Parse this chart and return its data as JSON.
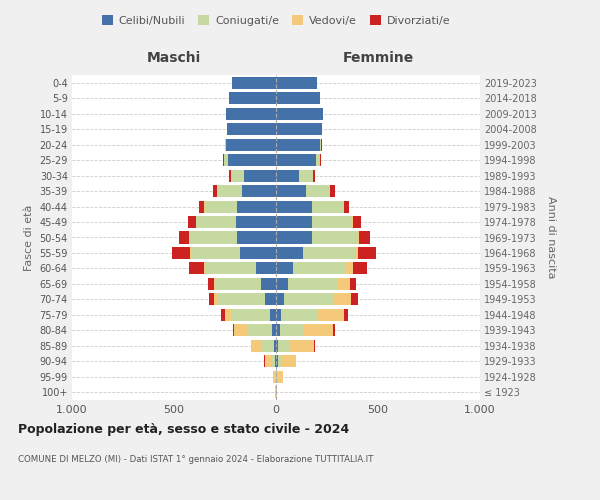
{
  "age_groups": [
    "100+",
    "95-99",
    "90-94",
    "85-89",
    "80-84",
    "75-79",
    "70-74",
    "65-69",
    "60-64",
    "55-59",
    "50-54",
    "45-49",
    "40-44",
    "35-39",
    "30-34",
    "25-29",
    "20-24",
    "15-19",
    "10-14",
    "5-9",
    "0-4"
  ],
  "birth_years": [
    "≤ 1923",
    "1924-1928",
    "1929-1933",
    "1934-1938",
    "1939-1943",
    "1944-1948",
    "1949-1953",
    "1954-1958",
    "1959-1963",
    "1964-1968",
    "1969-1973",
    "1974-1978",
    "1979-1983",
    "1984-1988",
    "1989-1993",
    "1994-1998",
    "1999-2003",
    "2004-2008",
    "2009-2013",
    "2014-2018",
    "2019-2023"
  ],
  "maschi": {
    "celibi": [
      0,
      2,
      5,
      8,
      20,
      30,
      55,
      75,
      100,
      175,
      190,
      195,
      190,
      165,
      155,
      235,
      245,
      240,
      245,
      230,
      215
    ],
    "coniugati": [
      2,
      5,
      20,
      60,
      120,
      185,
      230,
      220,
      250,
      240,
      235,
      195,
      160,
      120,
      65,
      20,
      5,
      0,
      0,
      0,
      0
    ],
    "vedovi": [
      2,
      10,
      30,
      55,
      65,
      35,
      20,
      10,
      5,
      5,
      2,
      2,
      2,
      2,
      2,
      2,
      2,
      0,
      0,
      0,
      0
    ],
    "divorziati": [
      0,
      0,
      2,
      2,
      5,
      20,
      25,
      30,
      70,
      90,
      50,
      40,
      25,
      20,
      10,
      5,
      0,
      0,
      0,
      0,
      0
    ]
  },
  "femmine": {
    "nubili": [
      0,
      2,
      8,
      12,
      18,
      25,
      40,
      60,
      85,
      130,
      175,
      175,
      175,
      145,
      115,
      195,
      215,
      225,
      230,
      215,
      200
    ],
    "coniugate": [
      2,
      5,
      20,
      55,
      115,
      180,
      240,
      240,
      260,
      255,
      225,
      195,
      155,
      120,
      65,
      20,
      5,
      0,
      0,
      0,
      0
    ],
    "vedove": [
      5,
      25,
      70,
      120,
      145,
      130,
      90,
      65,
      30,
      15,
      8,
      5,
      3,
      2,
      2,
      2,
      2,
      0,
      0,
      0,
      0
    ],
    "divorziate": [
      0,
      0,
      2,
      5,
      10,
      20,
      30,
      25,
      70,
      90,
      55,
      40,
      25,
      20,
      10,
      5,
      2,
      0,
      0,
      0,
      0
    ]
  },
  "colors": {
    "celibi": "#4472a8",
    "coniugati": "#c5d9a0",
    "vedovi": "#f5c97a",
    "divorziati": "#cc2222"
  },
  "title": "Popolazione per età, sesso e stato civile - 2024",
  "subtitle": "COMUNE DI MELZO (MI) - Dati ISTAT 1° gennaio 2024 - Elaborazione TUTTITALIA.IT",
  "xlabel_left": "Maschi",
  "xlabel_right": "Femmine",
  "ylabel_left": "Fasce di età",
  "ylabel_right": "Anni di nascita",
  "xlim": 1000,
  "bg_color": "#f0f0f0",
  "plot_bg_color": "#ffffff",
  "legend_labels": [
    "Celibi/Nubili",
    "Coniugati/e",
    "Vedovi/e",
    "Divorziati/e"
  ]
}
